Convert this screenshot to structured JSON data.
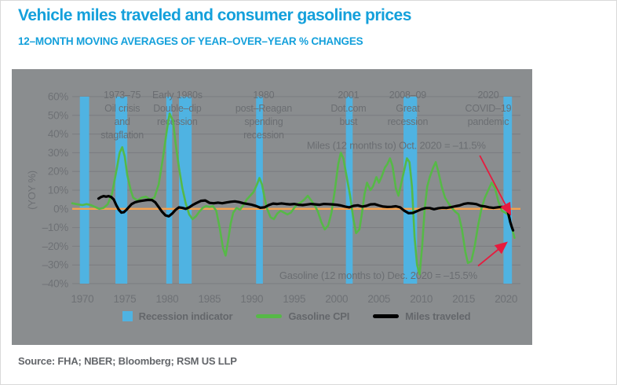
{
  "title": "Vehicle miles traveled and consumer gasoline prices",
  "subtitle": "12–MONTH MOVING AVERAGES OF YEAR–OVER–YEAR % CHANGES",
  "source": "Source: FHA; NBER; Bloomberg; RSM US LLP",
  "colors": {
    "title_blue": "#14A0DB",
    "panel_gray": "#8A8D8F",
    "grid_gray": "#7A7D80",
    "text_gray": "#6B6E72",
    "recession_blue": "#4FB3E2",
    "gasoline_green": "#56B947",
    "miles_black": "#000000",
    "zero_orange": "#F6A14E",
    "arrow_red": "#E61B3E",
    "source_gray": "#63666A"
  },
  "legend": [
    {
      "label": "Recession indicator",
      "type": "square",
      "color": "#4FB3E2"
    },
    {
      "label": "Gasoline CPI",
      "type": "line",
      "color": "#56B947"
    },
    {
      "label": "Miles traveled",
      "type": "line",
      "color": "#000000"
    }
  ],
  "chart_data": {
    "type": "line",
    "title": "Vehicle miles traveled and consumer gasoline prices",
    "subtitle": "12–MONTH MOVING AVERAGES OF YEAR–OVER–YEAR % CHANGES",
    "ylabel": "(YOY %)",
    "ylim": [
      -40,
      60
    ],
    "ytick_step": 10,
    "xlim": [
      1968.8,
      2021.7
    ],
    "xticks": [
      1970,
      1975,
      1980,
      1985,
      1990,
      1995,
      2000,
      2005,
      2010,
      2015,
      2020
    ],
    "grid": true,
    "legend_position": "bottom",
    "recessions": [
      [
        1969.7,
        1970.8
      ],
      [
        1973.9,
        1975.3
      ],
      [
        1979.9,
        1980.6
      ],
      [
        1981.4,
        1982.9
      ],
      [
        1990.5,
        1991.3
      ],
      [
        2001.1,
        2001.9
      ],
      [
        2007.9,
        2009.5
      ],
      [
        2019.7,
        2020.7
      ]
    ],
    "annotations": [
      {
        "year": 1974.7,
        "lines": [
          "1973–75",
          "Oil crisis",
          "and",
          "stagflation"
        ]
      },
      {
        "year": 1981.2,
        "lines": [
          "Early 1980s",
          "Double–dip",
          "recession"
        ]
      },
      {
        "year": 1991.4,
        "lines": [
          "1980",
          "post–Reagan",
          "spending",
          "recession"
        ]
      },
      {
        "year": 2001.4,
        "lines": [
          "2001",
          "Dot.com",
          "bust"
        ]
      },
      {
        "year": 2008.4,
        "lines": [
          "2008–09",
          "Great",
          "recession"
        ]
      },
      {
        "year": 2017.9,
        "lines": [
          "2020",
          "COVID–19",
          "pandemic"
        ]
      }
    ],
    "callouts": [
      {
        "id": "miles-callout",
        "text": "Miles (12 months to) Oct. 2020 = –11.5%",
        "year": 2017.6,
        "value": 32,
        "anchor": "end"
      },
      {
        "id": "gasoline-callout",
        "text": "Gasoline (12 months to) Dec. 2020 = –15.5%",
        "year": 2016.6,
        "value": -37.5,
        "anchor": "end"
      }
    ],
    "arrows": [
      {
        "id": "miles-arrow",
        "from": [
          2016.9,
          28.5
        ],
        "to": [
          2020.45,
          -2.3
        ]
      },
      {
        "id": "gasoline-arrow",
        "from": [
          2016.7,
          -30.5
        ],
        "to": [
          2019.95,
          -18.5
        ]
      }
    ],
    "series": [
      {
        "name": "Gasoline CPI",
        "color": "#56B947",
        "points": [
          [
            1968.8,
            3
          ],
          [
            1969.3,
            2.5
          ],
          [
            1970,
            2
          ],
          [
            1970.5,
            2.5
          ],
          [
            1971,
            2
          ],
          [
            1971.5,
            1
          ],
          [
            1972,
            0
          ],
          [
            1972.5,
            0.5
          ],
          [
            1973,
            2.5
          ],
          [
            1973.5,
            8
          ],
          [
            1974,
            20
          ],
          [
            1974.4,
            30
          ],
          [
            1974.7,
            33
          ],
          [
            1975,
            28
          ],
          [
            1975.3,
            18
          ],
          [
            1975.7,
            10
          ],
          [
            1976,
            6
          ],
          [
            1976.5,
            4.5
          ],
          [
            1977,
            6
          ],
          [
            1977.5,
            6.5
          ],
          [
            1978,
            5
          ],
          [
            1978.5,
            6
          ],
          [
            1979,
            13
          ],
          [
            1979.5,
            27
          ],
          [
            1980,
            43
          ],
          [
            1980.3,
            51
          ],
          [
            1980.7,
            47
          ],
          [
            1981,
            35
          ],
          [
            1981.4,
            22
          ],
          [
            1981.8,
            11
          ],
          [
            1982.2,
            3
          ],
          [
            1982.6,
            -3
          ],
          [
            1983,
            -5.5
          ],
          [
            1983.4,
            -4
          ],
          [
            1983.8,
            -1.5
          ],
          [
            1984.2,
            0.5
          ],
          [
            1984.6,
            1.5
          ],
          [
            1985,
            1
          ],
          [
            1985.4,
            1.5
          ],
          [
            1985.8,
            -1
          ],
          [
            1986.2,
            -10
          ],
          [
            1986.6,
            -21
          ],
          [
            1986.9,
            -25
          ],
          [
            1987.2,
            -17
          ],
          [
            1987.5,
            -8
          ],
          [
            1987.8,
            -2
          ],
          [
            1988.2,
            0.5
          ],
          [
            1988.6,
            -0.5
          ],
          [
            1989,
            2
          ],
          [
            1989.4,
            5
          ],
          [
            1989.8,
            7
          ],
          [
            1990.2,
            9
          ],
          [
            1990.6,
            13
          ],
          [
            1990.9,
            16.5
          ],
          [
            1991.2,
            13
          ],
          [
            1991.5,
            6
          ],
          [
            1991.8,
            0
          ],
          [
            1992.2,
            -4.5
          ],
          [
            1992.6,
            -5.5
          ],
          [
            1993,
            -2.5
          ],
          [
            1993.4,
            -1
          ],
          [
            1993.8,
            -2
          ],
          [
            1994.2,
            -3
          ],
          [
            1994.6,
            -2
          ],
          [
            1995,
            0.5
          ],
          [
            1995.4,
            2.5
          ],
          [
            1995.8,
            3.5
          ],
          [
            1996.2,
            5
          ],
          [
            1996.6,
            7
          ],
          [
            1997,
            4.5
          ],
          [
            1997.4,
            2
          ],
          [
            1997.8,
            -1.5
          ],
          [
            1998.2,
            -7
          ],
          [
            1998.6,
            -11
          ],
          [
            1999,
            -9
          ],
          [
            1999.4,
            -2
          ],
          [
            1999.8,
            10
          ],
          [
            2000.2,
            24
          ],
          [
            2000.5,
            30
          ],
          [
            2000.8,
            27
          ],
          [
            2001.2,
            17
          ],
          [
            2001.6,
            7
          ],
          [
            2002,
            -6
          ],
          [
            2002.3,
            -13
          ],
          [
            2002.7,
            -11
          ],
          [
            2003,
            -2
          ],
          [
            2003.3,
            8
          ],
          [
            2003.6,
            14
          ],
          [
            2004,
            10
          ],
          [
            2004.3,
            12
          ],
          [
            2004.7,
            17
          ],
          [
            2005,
            14
          ],
          [
            2005.3,
            17
          ],
          [
            2005.7,
            22
          ],
          [
            2006,
            24
          ],
          [
            2006.3,
            27
          ],
          [
            2006.6,
            23
          ],
          [
            2007,
            11
          ],
          [
            2007.3,
            7
          ],
          [
            2007.6,
            13
          ],
          [
            2008,
            21
          ],
          [
            2008.3,
            27
          ],
          [
            2008.6,
            25
          ],
          [
            2008.9,
            12
          ],
          [
            2009.2,
            -15
          ],
          [
            2009.5,
            -30
          ],
          [
            2009.8,
            -35
          ],
          [
            2010.1,
            -20
          ],
          [
            2010.4,
            0
          ],
          [
            2010.7,
            12
          ],
          [
            2011,
            17
          ],
          [
            2011.4,
            22
          ],
          [
            2011.7,
            25
          ],
          [
            2012,
            20
          ],
          [
            2012.4,
            12
          ],
          [
            2012.8,
            6
          ],
          [
            2013.2,
            3
          ],
          [
            2013.6,
            0.5
          ],
          [
            2014,
            -1.5
          ],
          [
            2014.4,
            -3
          ],
          [
            2014.8,
            -11
          ],
          [
            2015.2,
            -23
          ],
          [
            2015.5,
            -29
          ],
          [
            2015.9,
            -28
          ],
          [
            2016.3,
            -20
          ],
          [
            2016.7,
            -9
          ],
          [
            2017.1,
            0
          ],
          [
            2017.5,
            6
          ],
          [
            2018,
            11
          ],
          [
            2018.3,
            14
          ],
          [
            2018.7,
            11
          ],
          [
            2019.1,
            4
          ],
          [
            2019.5,
            -1
          ],
          [
            2019.9,
            -2
          ],
          [
            2020.2,
            -3
          ],
          [
            2020.5,
            -7
          ],
          [
            2020.8,
            -12
          ],
          [
            2021,
            -15.5
          ]
        ],
        "end_label": "Dec. 2020 = –15.5%"
      },
      {
        "name": "Miles traveled",
        "color": "#000000",
        "points": [
          [
            1971.9,
            5.5
          ],
          [
            1972.2,
            6.3
          ],
          [
            1972.5,
            6.8
          ],
          [
            1972.8,
            6.5
          ],
          [
            1973.1,
            6.8
          ],
          [
            1973.4,
            6.3
          ],
          [
            1973.7,
            5
          ],
          [
            1974,
            2
          ],
          [
            1974.3,
            -0.5
          ],
          [
            1974.6,
            -2
          ],
          [
            1974.9,
            -1.8
          ],
          [
            1975.2,
            -0.5
          ],
          [
            1975.5,
            1
          ],
          [
            1975.8,
            2.5
          ],
          [
            1976.2,
            3.5
          ],
          [
            1976.6,
            4
          ],
          [
            1977,
            4.3
          ],
          [
            1977.4,
            4.6
          ],
          [
            1977.8,
            4.8
          ],
          [
            1978.2,
            4.7
          ],
          [
            1978.6,
            3.5
          ],
          [
            1979,
            1
          ],
          [
            1979.4,
            -1.5
          ],
          [
            1979.8,
            -3.5
          ],
          [
            1980.2,
            -4
          ],
          [
            1980.6,
            -2.5
          ],
          [
            1981,
            -0.5
          ],
          [
            1981.4,
            0.8
          ],
          [
            1981.8,
            0.5
          ],
          [
            1982.2,
            0
          ],
          [
            1982.6,
            0.8
          ],
          [
            1983,
            2
          ],
          [
            1983.4,
            3
          ],
          [
            1984,
            4.3
          ],
          [
            1984.5,
            4.5
          ],
          [
            1985,
            3.2
          ],
          [
            1985.5,
            3
          ],
          [
            1986,
            3.3
          ],
          [
            1986.5,
            3
          ],
          [
            1987,
            3.4
          ],
          [
            1987.5,
            3.8
          ],
          [
            1988,
            4
          ],
          [
            1988.5,
            3.6
          ],
          [
            1989,
            3
          ],
          [
            1989.5,
            2.6
          ],
          [
            1990,
            2.2
          ],
          [
            1990.5,
            1.5
          ],
          [
            1991,
            0.6
          ],
          [
            1991.5,
            0.8
          ],
          [
            1992,
            2
          ],
          [
            1992.5,
            2.8
          ],
          [
            1993,
            2.6
          ],
          [
            1993.5,
            2.9
          ],
          [
            1994,
            2.6
          ],
          [
            1994.5,
            2.4
          ],
          [
            1995,
            2.6
          ],
          [
            1995.5,
            2.2
          ],
          [
            1996,
            2
          ],
          [
            1996.5,
            2.3
          ],
          [
            1997,
            2.6
          ],
          [
            1997.5,
            2.4
          ],
          [
            1998,
            2.2
          ],
          [
            1998.5,
            2.6
          ],
          [
            1999,
            2.5
          ],
          [
            1999.5,
            2.4
          ],
          [
            2000,
            2.2
          ],
          [
            2000.5,
            1.8
          ],
          [
            2001,
            1.2
          ],
          [
            2001.5,
            0.8
          ],
          [
            2002,
            1.6
          ],
          [
            2002.5,
            1.9
          ],
          [
            2003,
            1.2
          ],
          [
            2003.5,
            1.6
          ],
          [
            2004,
            2.4
          ],
          [
            2004.5,
            2.5
          ],
          [
            2005,
            1.8
          ],
          [
            2005.5,
            1.2
          ],
          [
            2006,
            1
          ],
          [
            2006.5,
            1.1
          ],
          [
            2007,
            1.4
          ],
          [
            2007.5,
            0.8
          ],
          [
            2008,
            -1
          ],
          [
            2008.5,
            -2.3
          ],
          [
            2009,
            -2.2
          ],
          [
            2009.5,
            -1.2
          ],
          [
            2010,
            -0.2
          ],
          [
            2010.5,
            0.4
          ],
          [
            2011,
            0.4
          ],
          [
            2011.5,
            -0.2
          ],
          [
            2012,
            0.3
          ],
          [
            2012.5,
            0.6
          ],
          [
            2013,
            0.5
          ],
          [
            2013.5,
            0.9
          ],
          [
            2014,
            1.4
          ],
          [
            2014.5,
            1.8
          ],
          [
            2015,
            2.6
          ],
          [
            2015.5,
            3
          ],
          [
            2016,
            2.8
          ],
          [
            2016.5,
            2.5
          ],
          [
            2017,
            1.6
          ],
          [
            2017.5,
            1.3
          ],
          [
            2018,
            0.8
          ],
          [
            2018.5,
            0.5
          ],
          [
            2019,
            0.8
          ],
          [
            2019.5,
            1
          ],
          [
            2019.9,
            0.9
          ],
          [
            2020.1,
            0.2
          ],
          [
            2020.3,
            -3
          ],
          [
            2020.5,
            -7
          ],
          [
            2020.7,
            -10
          ],
          [
            2020.83,
            -11.5
          ]
        ],
        "end_label": "Oct. 2020 = –11.5%"
      }
    ]
  }
}
